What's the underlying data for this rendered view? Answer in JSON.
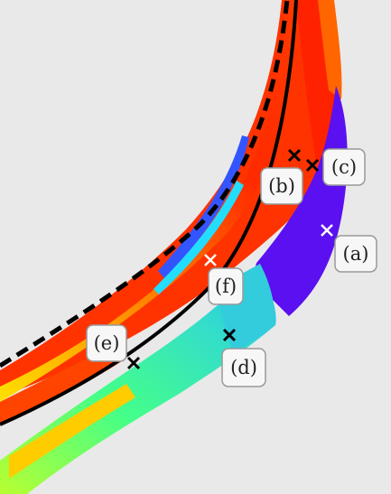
{
  "labels": {
    "a": "(a)",
    "b": "(b)",
    "c": "(c)",
    "d": "(d)",
    "e": "(e)",
    "f": "(f)"
  },
  "colors": {
    "background": "#e9e9e9",
    "label_box_fill": "#f7f7f7",
    "label_box_stroke": "#999999",
    "black_marker": "#000000",
    "white_marker": "#ffffff",
    "colormap_low": "#5a10f0",
    "colormap_mid": "#33ee88",
    "colormap_high": "#ff1a00"
  }
}
